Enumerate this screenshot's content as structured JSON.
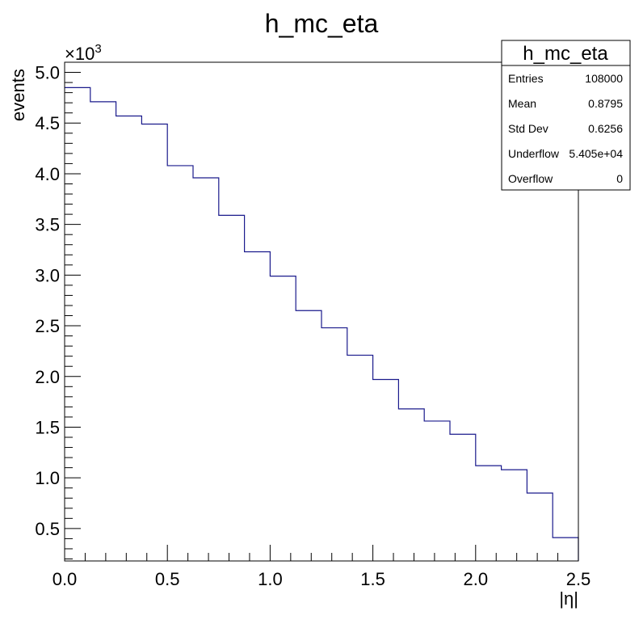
{
  "chart_data": {
    "type": "histogram",
    "title": "h_mc_eta",
    "xlabel": "|η|",
    "ylabel": "events",
    "y_multiplier_label": "×10",
    "y_multiplier_exp": "3",
    "xlim": [
      0,
      2.5
    ],
    "ylim": [
      0.18,
      5.1
    ],
    "y_scale": 1000,
    "x_ticks": [
      "0.0",
      "0.5",
      "1.0",
      "1.5",
      "2.0",
      "2.5"
    ],
    "y_ticks": [
      "0.5",
      "1.0",
      "1.5",
      "2.0",
      "2.5",
      "3.0",
      "3.5",
      "4.0",
      "4.5",
      "5.0"
    ],
    "bin_edges": [
      0,
      0.125,
      0.25,
      0.375,
      0.5,
      0.625,
      0.75,
      0.875,
      1.0,
      1.125,
      1.25,
      1.375,
      1.5,
      1.625,
      1.75,
      1.875,
      2.0,
      2.125,
      2.25,
      2.375,
      2.5
    ],
    "values": [
      4.85,
      4.71,
      4.57,
      4.49,
      4.08,
      3.96,
      3.59,
      3.23,
      2.99,
      2.65,
      2.48,
      2.21,
      1.97,
      1.68,
      1.56,
      1.43,
      1.12,
      1.08,
      0.85,
      0.41
    ],
    "line_color": "#1a1a8c",
    "legend": "top-right"
  },
  "stats_box": {
    "title": "h_mc_eta",
    "rows": [
      {
        "label": "Entries",
        "value": "108000"
      },
      {
        "label": "Mean",
        "value": "0.8795"
      },
      {
        "label": "Std Dev",
        "value": "0.6256"
      },
      {
        "label": "Underflow",
        "value": "5.405e+04"
      },
      {
        "label": "Overflow",
        "value": "0"
      }
    ]
  }
}
